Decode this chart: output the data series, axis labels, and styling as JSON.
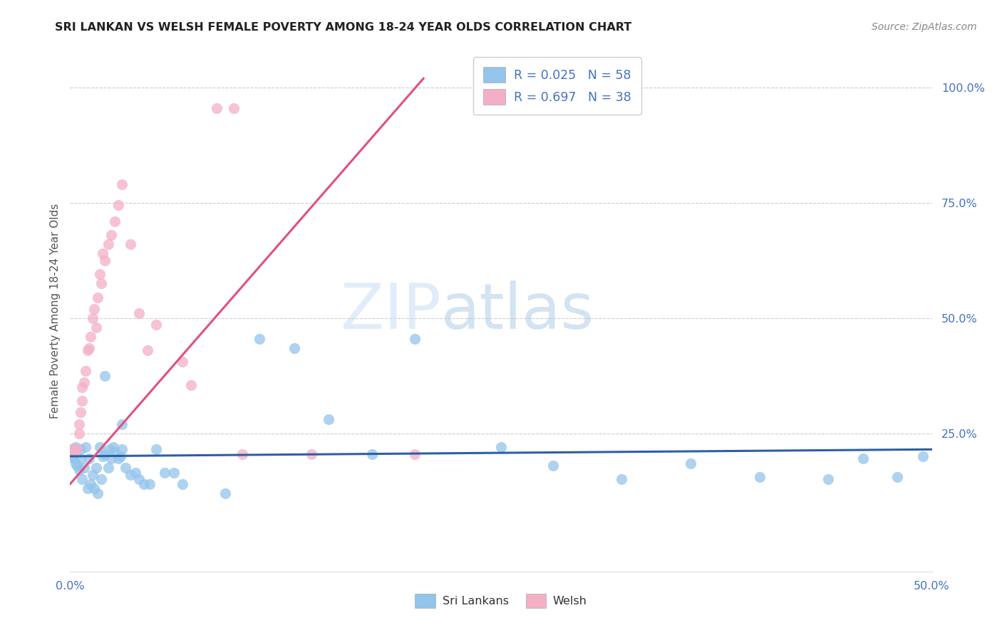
{
  "title": "SRI LANKAN VS WELSH FEMALE POVERTY AMONG 18-24 YEAR OLDS CORRELATION CHART",
  "source": "Source: ZipAtlas.com",
  "ylabel": "Female Poverty Among 18-24 Year Olds",
  "ytick_labels": [
    "100.0%",
    "75.0%",
    "50.0%",
    "25.0%"
  ],
  "ytick_values": [
    1.0,
    0.75,
    0.5,
    0.25
  ],
  "xlim": [
    0.0,
    0.5
  ],
  "ylim": [
    -0.05,
    1.08
  ],
  "plot_ylim": [
    -0.05,
    1.08
  ],
  "sri_lankan_color": "#93c4ec",
  "welsh_color": "#f4afc5",
  "sri_lankan_R": 0.025,
  "sri_lankan_N": 58,
  "welsh_R": 0.697,
  "welsh_N": 38,
  "watermark_zip": "ZIP",
  "watermark_atlas": "atlas",
  "legend_sri_lankan": "Sri Lankans",
  "legend_welsh": "Welsh",
  "sri_lankan_line_color": "#2e5fa3",
  "welsh_line_color": "#e05080",
  "axis_label_color": "#4472c4",
  "title_color": "#222222",
  "source_color": "#888888",
  "grid_color": "#cccccc",
  "sl_x": [
    0.001,
    0.001,
    0.002,
    0.003,
    0.003,
    0.004,
    0.005,
    0.006,
    0.006,
    0.007,
    0.008,
    0.009,
    0.01,
    0.011,
    0.012,
    0.013,
    0.014,
    0.015,
    0.016,
    0.017,
    0.018,
    0.019,
    0.02,
    0.022,
    0.023,
    0.024,
    0.025,
    0.026,
    0.028,
    0.029,
    0.03,
    0.032,
    0.035,
    0.038,
    0.04,
    0.043,
    0.046,
    0.05,
    0.055,
    0.06,
    0.065,
    0.09,
    0.11,
    0.13,
    0.15,
    0.175,
    0.2,
    0.25,
    0.28,
    0.32,
    0.36,
    0.4,
    0.44,
    0.46,
    0.48,
    0.495,
    0.02,
    0.03
  ],
  "sl_y": [
    0.2,
    0.215,
    0.195,
    0.185,
    0.22,
    0.18,
    0.17,
    0.215,
    0.195,
    0.15,
    0.175,
    0.22,
    0.13,
    0.195,
    0.14,
    0.16,
    0.13,
    0.175,
    0.12,
    0.22,
    0.15,
    0.2,
    0.205,
    0.175,
    0.215,
    0.195,
    0.22,
    0.21,
    0.195,
    0.2,
    0.215,
    0.175,
    0.16,
    0.165,
    0.15,
    0.14,
    0.14,
    0.215,
    0.165,
    0.165,
    0.14,
    0.12,
    0.455,
    0.435,
    0.28,
    0.205,
    0.455,
    0.22,
    0.18,
    0.15,
    0.185,
    0.155,
    0.15,
    0.195,
    0.155,
    0.2,
    0.375,
    0.27
  ],
  "w_x": [
    0.001,
    0.002,
    0.003,
    0.004,
    0.005,
    0.005,
    0.006,
    0.007,
    0.007,
    0.008,
    0.009,
    0.01,
    0.011,
    0.012,
    0.013,
    0.014,
    0.015,
    0.016,
    0.017,
    0.018,
    0.019,
    0.02,
    0.022,
    0.024,
    0.026,
    0.028,
    0.03,
    0.035,
    0.04,
    0.045,
    0.05,
    0.065,
    0.07,
    0.085,
    0.095,
    0.1,
    0.14,
    0.2
  ],
  "w_y": [
    0.215,
    0.21,
    0.215,
    0.215,
    0.25,
    0.27,
    0.295,
    0.32,
    0.35,
    0.36,
    0.385,
    0.43,
    0.435,
    0.46,
    0.5,
    0.52,
    0.48,
    0.545,
    0.595,
    0.575,
    0.64,
    0.625,
    0.66,
    0.68,
    0.71,
    0.745,
    0.79,
    0.66,
    0.51,
    0.43,
    0.485,
    0.405,
    0.355,
    0.955,
    0.955,
    0.205,
    0.205,
    0.205
  ],
  "sl_line_x": [
    0.0,
    0.5
  ],
  "sl_line_y": [
    0.2,
    0.215
  ],
  "w_line_x": [
    0.0,
    0.205
  ],
  "w_line_y": [
    0.14,
    1.02
  ]
}
